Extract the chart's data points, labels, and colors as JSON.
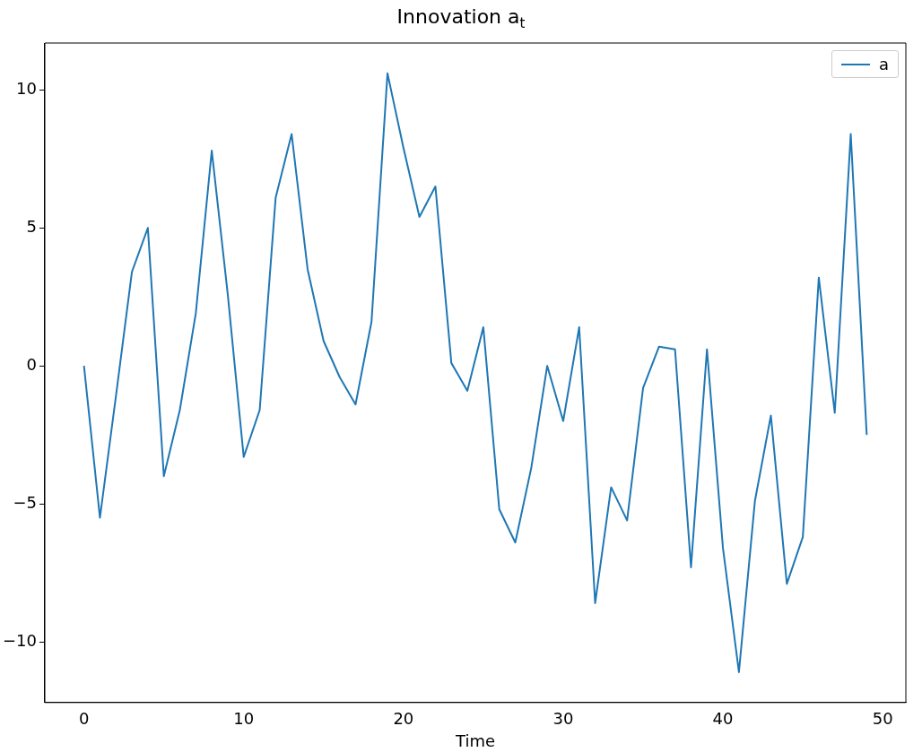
{
  "chart_data": {
    "type": "line",
    "title": "Innovation a$_{t}$",
    "xlabel": "Time",
    "x": [
      0,
      1,
      2,
      3,
      4,
      5,
      6,
      7,
      8,
      9,
      10,
      11,
      12,
      13,
      14,
      15,
      16,
      17,
      18,
      19,
      20,
      21,
      22,
      23,
      24,
      25,
      26,
      27,
      28,
      29,
      30,
      31,
      32,
      33,
      34,
      35,
      36,
      37,
      38,
      39,
      40,
      41,
      42,
      43,
      44,
      45,
      46,
      47,
      48,
      49
    ],
    "series": [
      {
        "name": "a",
        "color": "#1f77b4",
        "values": [
          0.0,
          -5.5,
          -1.1,
          3.4,
          5.0,
          -4.0,
          -1.6,
          1.9,
          7.8,
          2.6,
          -3.3,
          -1.6,
          6.1,
          8.4,
          3.5,
          0.9,
          -0.4,
          -1.4,
          1.6,
          10.6,
          7.9,
          5.4,
          6.5,
          0.1,
          -0.9,
          1.4,
          -5.2,
          -6.4,
          -3.7,
          0.0,
          -2.0,
          1.4,
          -8.6,
          -4.4,
          -5.6,
          -0.8,
          0.7,
          0.6,
          -7.3,
          0.6,
          -6.6,
          -11.1,
          -4.9,
          -1.8,
          -7.9,
          -6.2,
          3.2,
          -1.7,
          8.4,
          -2.5
        ]
      }
    ],
    "xlim": [
      -2.45,
      51.45
    ],
    "ylim": [
      -12.2,
      11.7
    ],
    "xticks": [
      0,
      10,
      20,
      30,
      40,
      50
    ],
    "yticks": [
      -10,
      -5,
      0,
      5,
      10
    ],
    "grid": false,
    "legend": "top right",
    "marker": "none",
    "line_style": "solid"
  }
}
